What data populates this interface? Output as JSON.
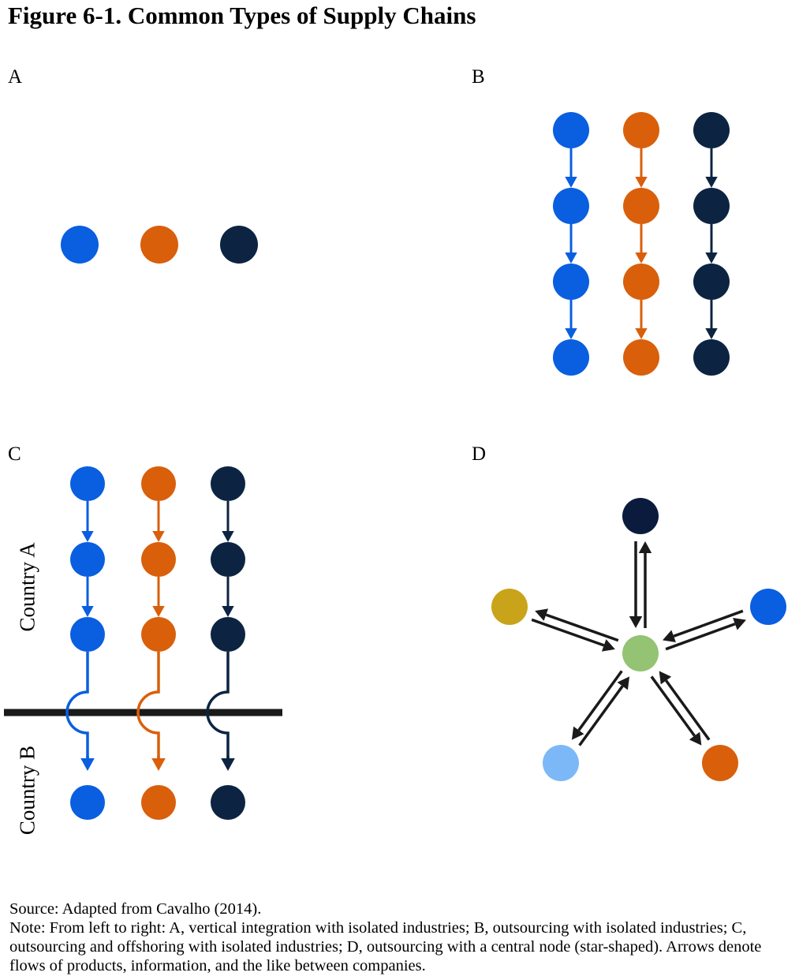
{
  "title": "Figure 6-1. Common Types of Supply Chains",
  "panels": {
    "a": {
      "label": "A"
    },
    "b": {
      "label": "B"
    },
    "c": {
      "label": "C",
      "country_top": "Country A",
      "country_bottom": "Country B"
    },
    "d": {
      "label": "D"
    }
  },
  "colors": {
    "blue": "#0a5ee0",
    "orange": "#d95f0b",
    "navy": "#0c2442",
    "dark_navy": "#0b1b3d",
    "gold": "#c9a319",
    "light_blue": "#7cb8f7",
    "green": "#93c373",
    "border": "#1a1a1a",
    "arrow_dark": "#1a1a1a"
  },
  "notes": {
    "source": "Source: Adapted from Cavalho (2014).",
    "note": "Note: From left to right: A, vertical integration with isolated industries; B, outsourcing with isolated industries; C, outsourcing and offshoring with isolated industries; D, outsourcing with a central node (star-shaped). Arrows denote flows of products, information, and the like between companies."
  }
}
